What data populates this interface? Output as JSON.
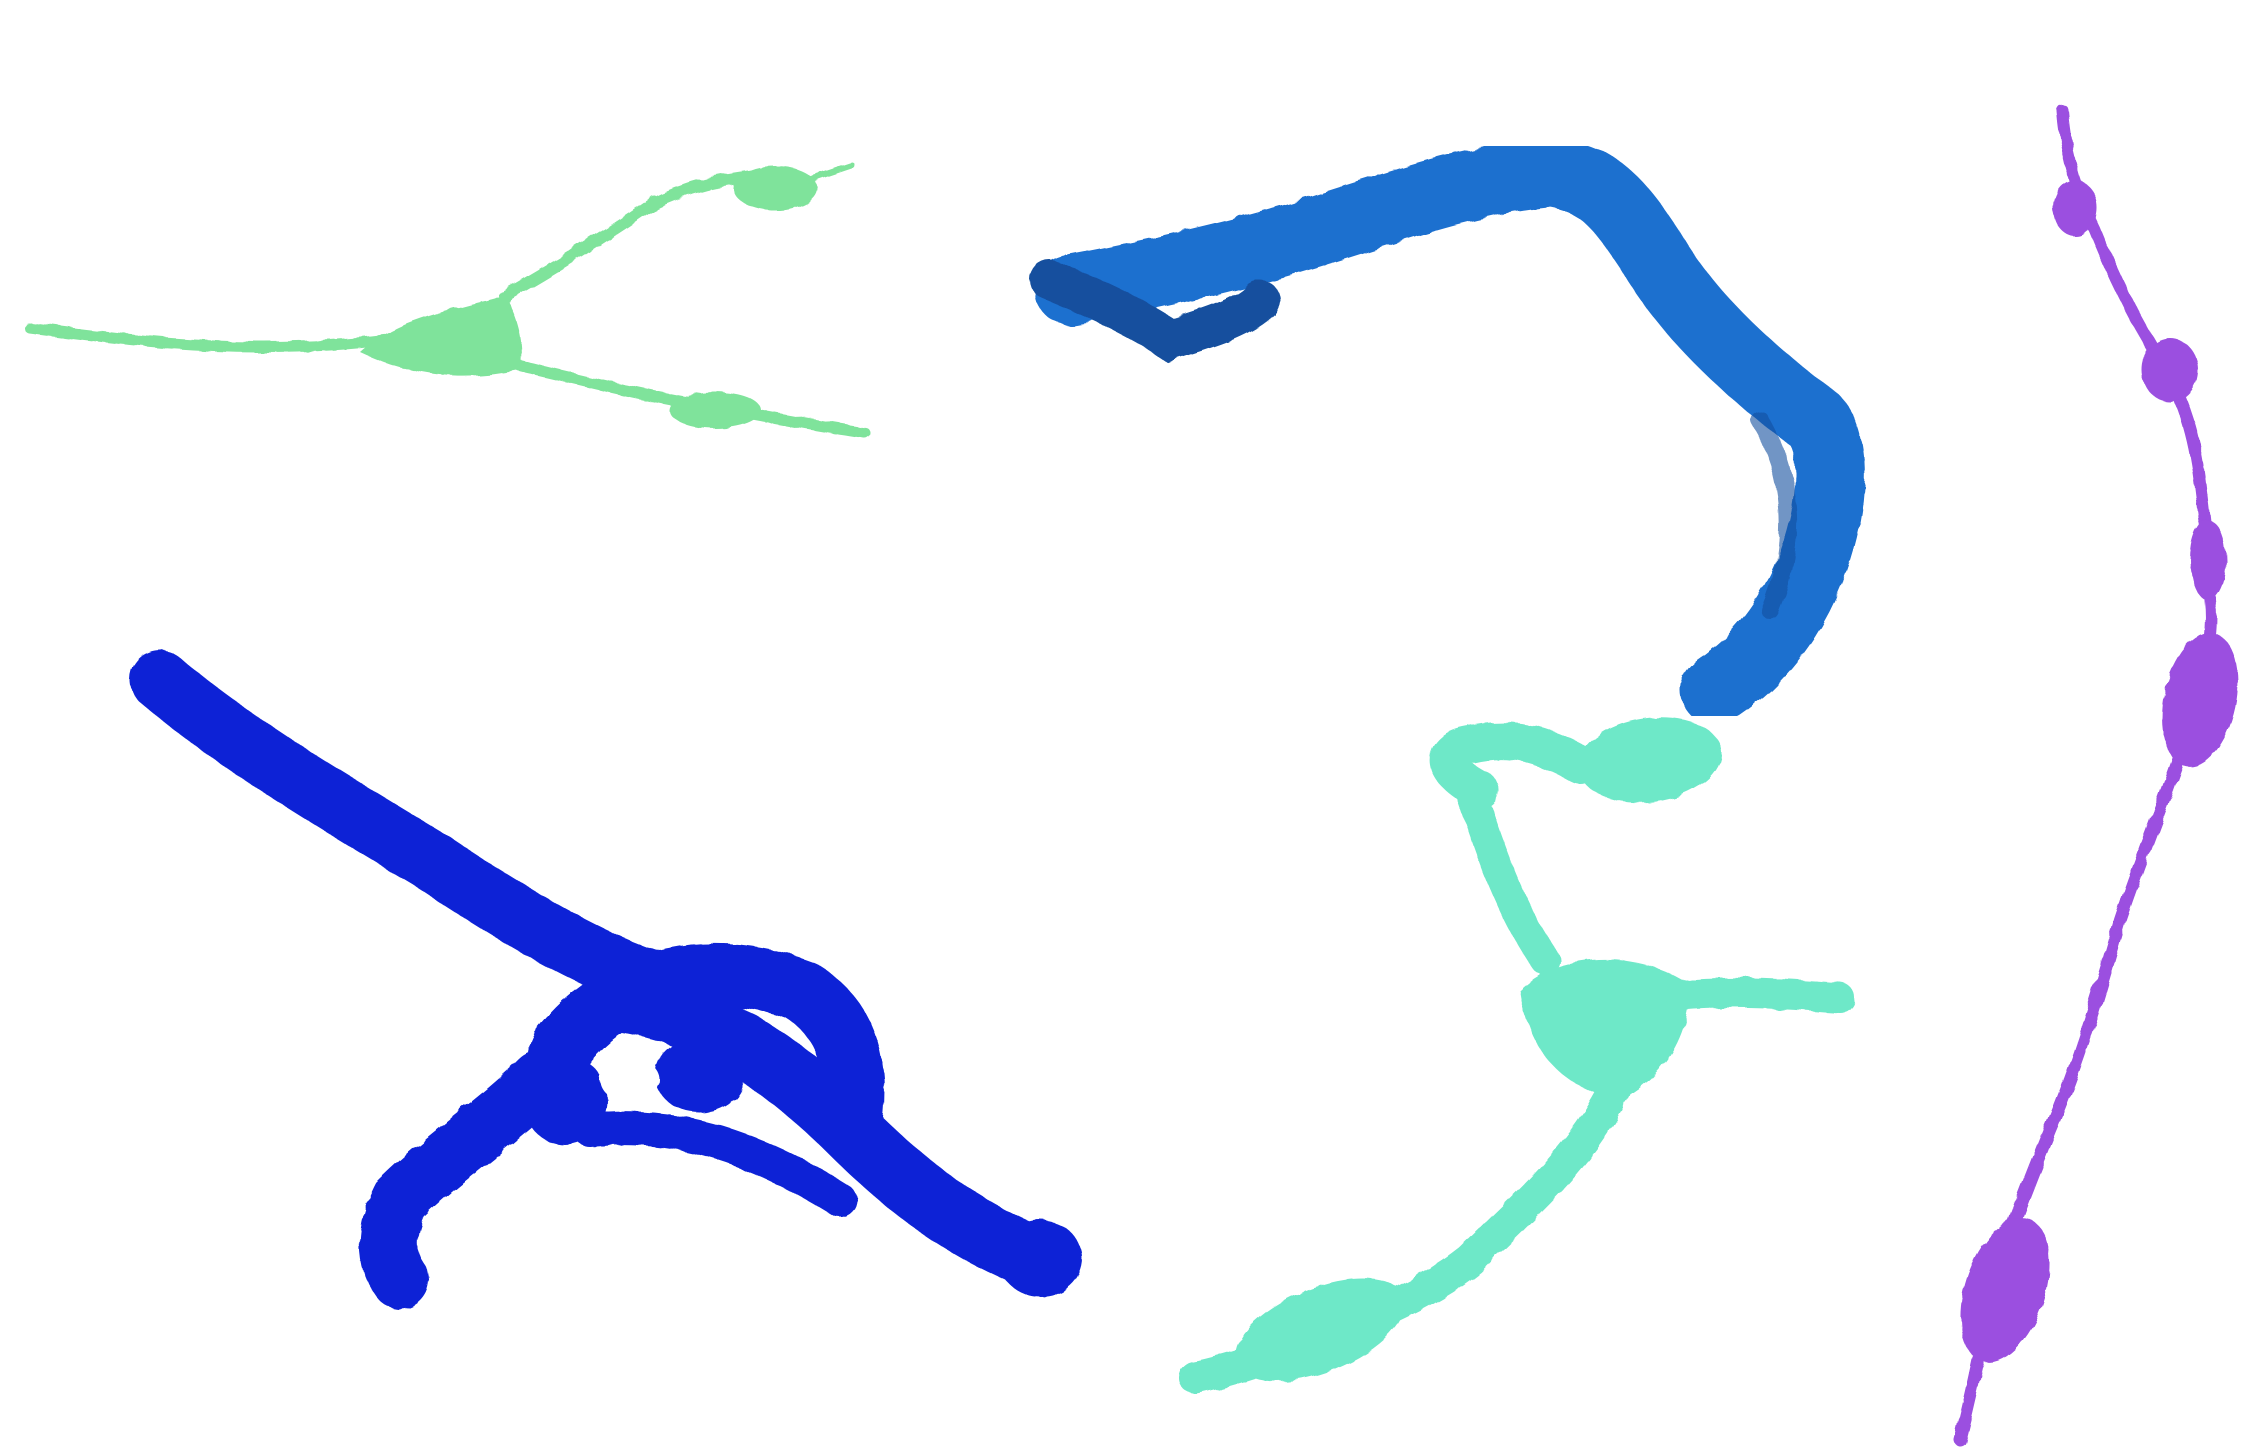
{
  "scene": {
    "background": "#ffffff",
    "objects": [
      {
        "name": "green-bipolar-cell",
        "color": "#7fe39b",
        "shade": "#5cc77c"
      },
      {
        "name": "royal-blue-elongated-cell",
        "color": "#1f6fcf",
        "shade": "#124f9e"
      },
      {
        "name": "purple-beaded-fiber",
        "color": "#9b4fe0",
        "shade": "#7a32c0"
      },
      {
        "name": "deep-blue-looped-cell",
        "color": "#0a23d6",
        "shade": "#061aa6"
      },
      {
        "name": "aquamarine-branched-cell",
        "color": "#6ee8c8",
        "shade": "#49c4a6"
      }
    ]
  }
}
